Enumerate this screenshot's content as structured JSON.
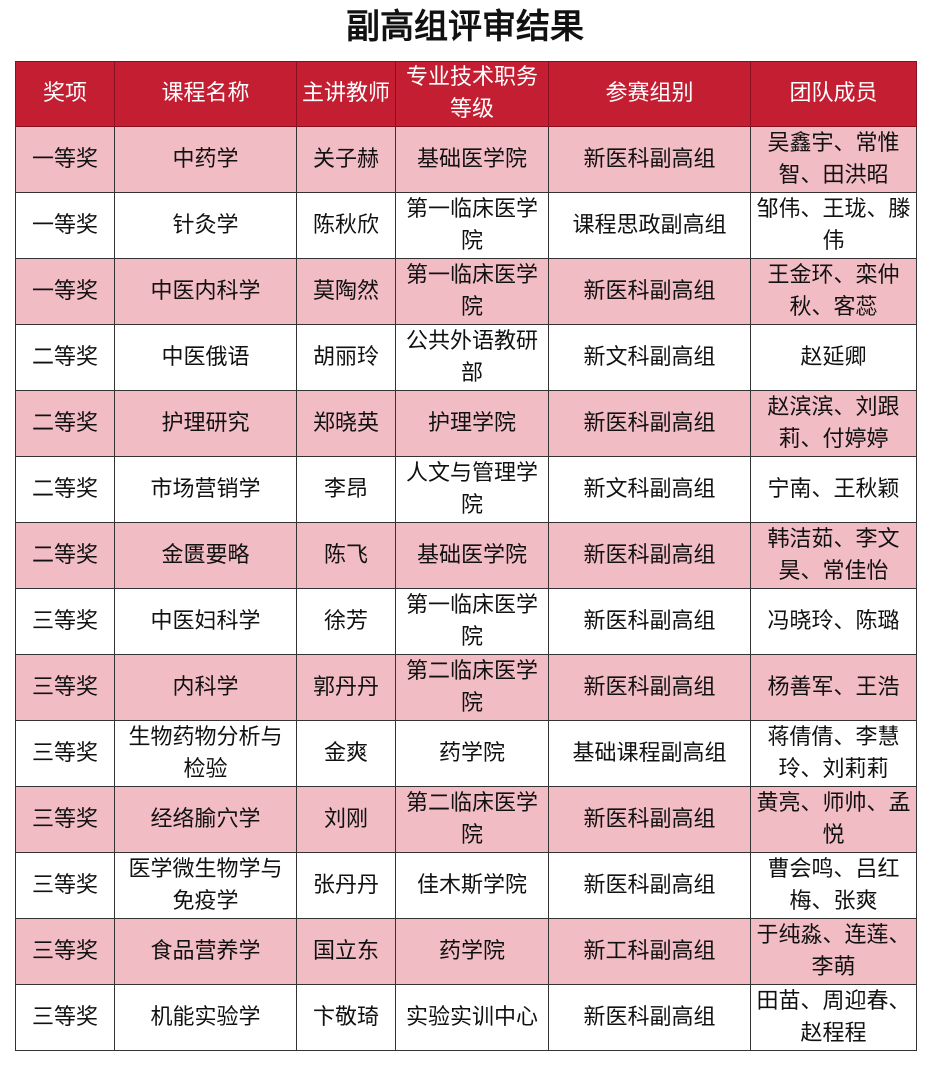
{
  "title": "副高组评审结果",
  "colors": {
    "header_bg": "#c41e32",
    "pink_row": "#f2bcc4"
  },
  "headers": [
    "奖项",
    "课程名称",
    "主讲教师",
    "专业技术职务等级",
    "参赛组别",
    "团队成员"
  ],
  "rows": [
    [
      "一等奖",
      "中药学",
      "关子赫",
      "基础医学院",
      "新医科副高组",
      "吴鑫宇、常惟智、田洪昭"
    ],
    [
      "一等奖",
      "针灸学",
      "陈秋欣",
      "第一临床医学院",
      "课程思政副高组",
      "邹伟、王珑、滕伟"
    ],
    [
      "一等奖",
      "中医内科学",
      "莫陶然",
      "第一临床医学院",
      "新医科副高组",
      "王金环、栾仲秋、客蕊"
    ],
    [
      "二等奖",
      "中医俄语",
      "胡丽玲",
      "公共外语教研部",
      "新文科副高组",
      "赵延卿"
    ],
    [
      "二等奖",
      "护理研究",
      "郑晓英",
      "护理学院",
      "新医科副高组",
      "赵滨滨、刘跟莉、付婷婷"
    ],
    [
      "二等奖",
      "市场营销学",
      "李昂",
      "人文与管理学院",
      "新文科副高组",
      "宁南、王秋颖"
    ],
    [
      "二等奖",
      "金匮要略",
      "陈飞",
      "基础医学院",
      "新医科副高组",
      "韩洁茹、李文昊、常佳怡"
    ],
    [
      "三等奖",
      "中医妇科学",
      "徐芳",
      "第一临床医学院",
      "新医科副高组",
      "冯晓玲、陈璐"
    ],
    [
      "三等奖",
      "内科学",
      "郭丹丹",
      "第二临床医学院",
      "新医科副高组",
      "杨善军、王浩"
    ],
    [
      "三等奖",
      "生物药物分析与检验",
      "金爽",
      "药学院",
      "基础课程副高组",
      "蒋倩倩、李慧玲、刘莉莉"
    ],
    [
      "三等奖",
      "经络腧穴学",
      "刘刚",
      "第二临床医学院",
      "新医科副高组",
      "黄亮、师帅、孟悦"
    ],
    [
      "三等奖",
      "医学微生物学与免疫学",
      "张丹丹",
      "佳木斯学院",
      "新医科副高组",
      "曹会鸣、吕红梅、张爽"
    ],
    [
      "三等奖",
      "食品营养学",
      "国立东",
      "药学院",
      "新工科副高组",
      "于纯淼、连莲、李萌"
    ],
    [
      "三等奖",
      "机能实验学",
      "卞敬琦",
      "实验实训中心",
      "新医科副高组",
      "田苗、周迎春、赵程程"
    ]
  ]
}
